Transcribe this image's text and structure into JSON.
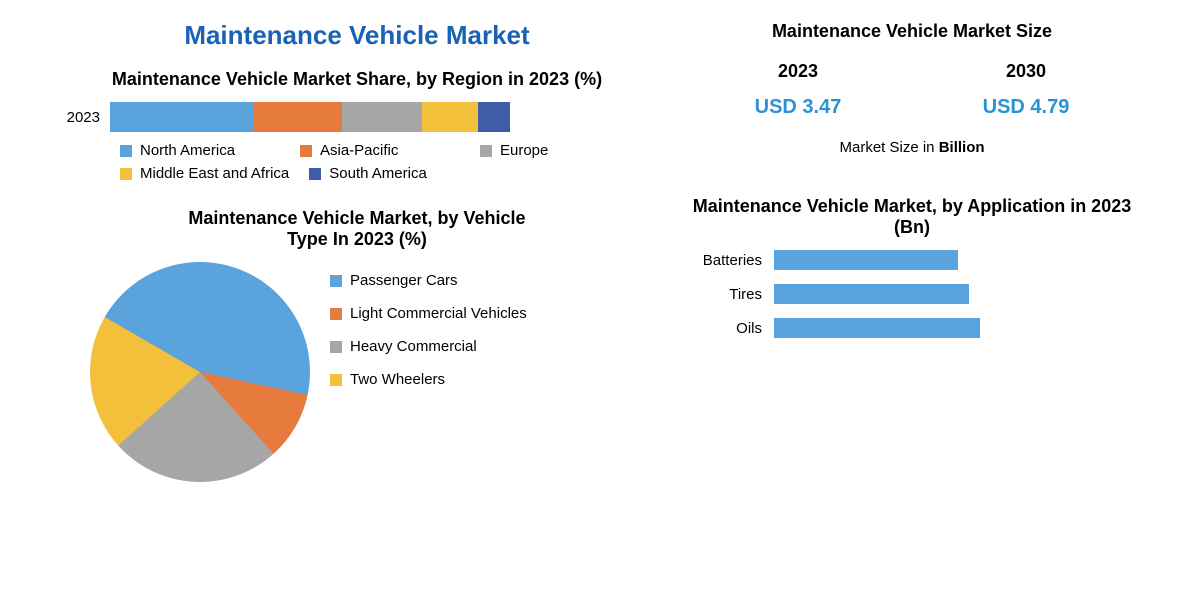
{
  "main_title": "Maintenance Vehicle Market",
  "main_title_color": "#1a62b3",
  "region_chart": {
    "title": "Maintenance Vehicle Market Share, by Region in 2023 (%)",
    "title_color": "#000000",
    "year_label": "2023",
    "segments": [
      {
        "name": "North America",
        "value": 36,
        "color": "#5aa3dc"
      },
      {
        "name": "Asia-Pacific",
        "value": 22,
        "color": "#e77b3e"
      },
      {
        "name": "Europe",
        "value": 20,
        "color": "#a6a6a6"
      },
      {
        "name": "Middle East and Africa",
        "value": 14,
        "color": "#f2c03b"
      },
      {
        "name": "South America",
        "value": 8,
        "color": "#3f5ca8"
      }
    ]
  },
  "vehicle_type_chart": {
    "title": "Maintenance Vehicle Market, by Vehicle Type In 2023 (%)",
    "title_color": "#000000",
    "slices": [
      {
        "name": "Passenger Cars",
        "value": 45,
        "color": "#5aa3dc"
      },
      {
        "name": "Light Commercial Vehicles",
        "value": 10,
        "color": "#e77b3e"
      },
      {
        "name": "Heavy Commercial",
        "value": 25,
        "color": "#a6a6a6"
      },
      {
        "name": "Two Wheelers",
        "value": 20,
        "color": "#f2c03b"
      }
    ]
  },
  "market_size": {
    "title": "Maintenance Vehicle Market Size",
    "title_color": "#000000",
    "years": [
      "2023",
      "2030"
    ],
    "values": [
      "USD 3.47",
      "USD 4.79"
    ],
    "value_color": "#2a93d4",
    "note_prefix": "Market Size in ",
    "note_bold": "Billion"
  },
  "application_chart": {
    "title": "Maintenance Vehicle Market, by Application in 2023 (Bn)",
    "title_color": "#000000",
    "bar_color": "#5aa3dc",
    "max": 1.2,
    "items": [
      {
        "label": "Batteries",
        "value": 0.85
      },
      {
        "label": "Tires",
        "value": 0.9
      },
      {
        "label": "Oils",
        "value": 0.95
      }
    ]
  },
  "font": {
    "title_size": 18,
    "label_size": 15
  }
}
